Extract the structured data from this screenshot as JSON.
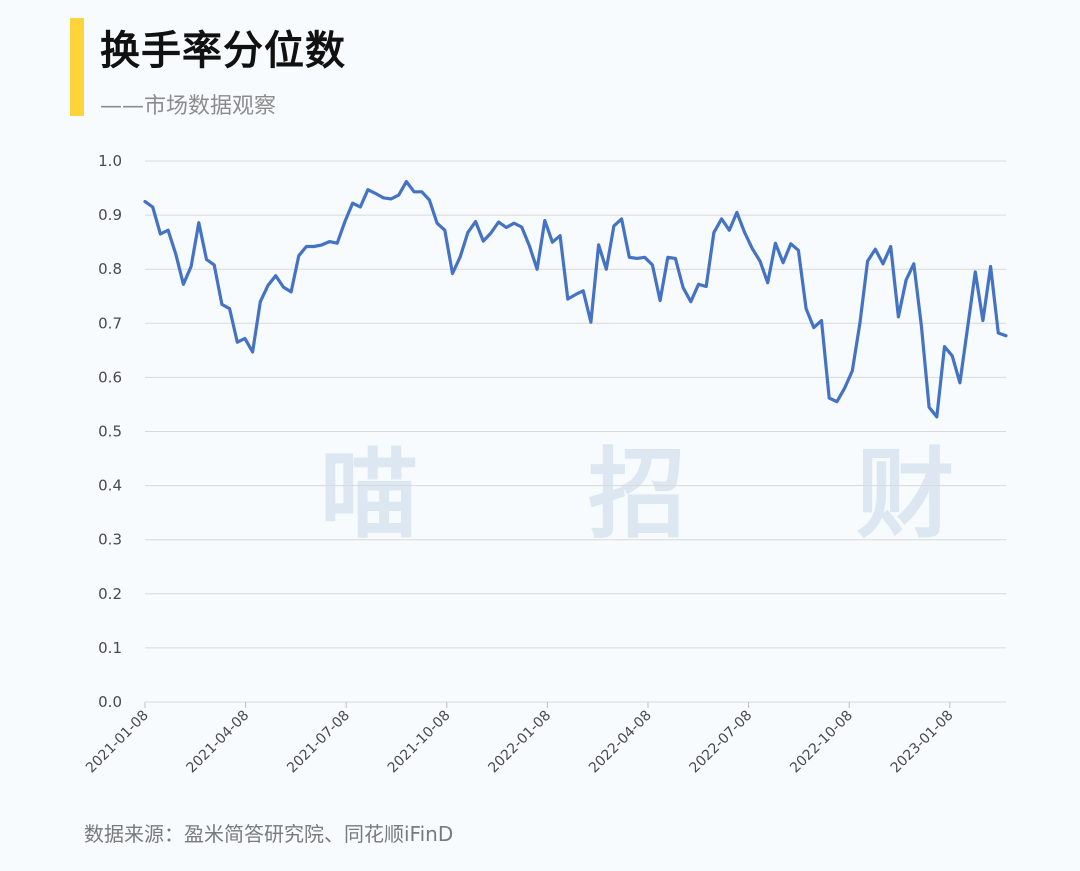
{
  "header": {
    "title": "换手率分位数",
    "subtitle": "——市场数据观察"
  },
  "watermark": "喵 招 财",
  "footer": {
    "source": "数据来源：盈米简答研究院、同花顺iFinD"
  },
  "colors": {
    "accent": "#ffd43a",
    "line": "#4472c4",
    "grid": "#d9d9d9"
  },
  "chart_data": {
    "type": "line",
    "title": "换手率分位数",
    "xlabel": "",
    "ylabel": "",
    "ylim": [
      0,
      1
    ],
    "yticks": [
      "0.0",
      "0.1",
      "0.2",
      "0.3",
      "0.4",
      "0.5",
      "0.6",
      "0.7",
      "0.8",
      "0.9",
      "1.0"
    ],
    "xticks": [
      "2021-01-08",
      "2021-04-08",
      "2021-07-08",
      "2021-10-08",
      "2022-01-08",
      "2022-04-08",
      "2022-07-08",
      "2022-10-08",
      "2023-01-08"
    ],
    "grid": true,
    "series": [
      {
        "name": "",
        "values": [
          0.925,
          0.915,
          0.865,
          0.872,
          0.828,
          0.772,
          0.805,
          0.886,
          0.818,
          0.808,
          0.735,
          0.727,
          0.665,
          0.672,
          0.647,
          0.74,
          0.77,
          0.788,
          0.767,
          0.758,
          0.825,
          0.842,
          0.842,
          0.845,
          0.851,
          0.848,
          0.888,
          0.922,
          0.915,
          0.947,
          0.94,
          0.932,
          0.93,
          0.937,
          0.962,
          0.943,
          0.943,
          0.928,
          0.885,
          0.872,
          0.792,
          0.823,
          0.868,
          0.888,
          0.852,
          0.867,
          0.887,
          0.877,
          0.885,
          0.878,
          0.843,
          0.8,
          0.89,
          0.85,
          0.862,
          0.745,
          0.753,
          0.76,
          0.702,
          0.845,
          0.8,
          0.88,
          0.893,
          0.822,
          0.82,
          0.822,
          0.808,
          0.742,
          0.822,
          0.82,
          0.766,
          0.74,
          0.772,
          0.768,
          0.868,
          0.893,
          0.872,
          0.905,
          0.868,
          0.838,
          0.815,
          0.775,
          0.848,
          0.812,
          0.847,
          0.835,
          0.727,
          0.692,
          0.705,
          0.562,
          0.555,
          0.58,
          0.612,
          0.7,
          0.815,
          0.837,
          0.81,
          0.842,
          0.712,
          0.78,
          0.81,
          0.695,
          0.545,
          0.527,
          0.657,
          0.64,
          0.59,
          0.692,
          0.795,
          0.705,
          0.805,
          0.682,
          0.677
        ]
      }
    ]
  }
}
